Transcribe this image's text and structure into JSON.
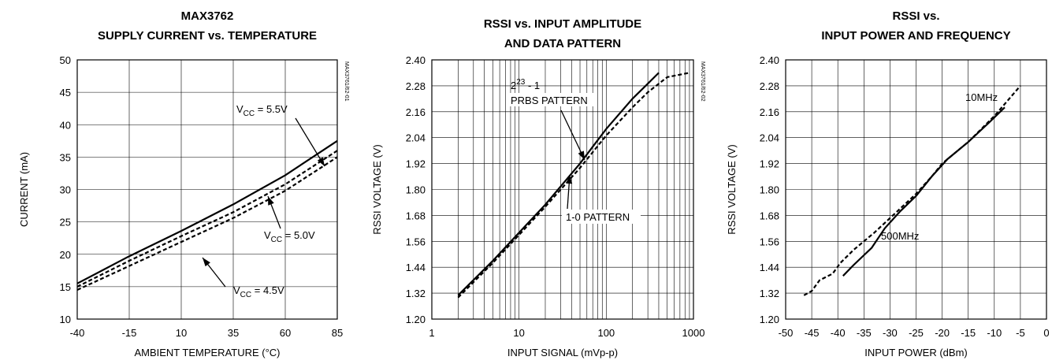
{
  "chart_data": [
    {
      "type": "line",
      "title_lines": [
        "MAX3762",
        "SUPPLY CURRENT vs. TEMPERATURE"
      ],
      "xlabel": "AMBIENT TEMPERATURE (°C)",
      "ylabel": "CURRENT (mA)",
      "xlim": [
        -40,
        85
      ],
      "ylim": [
        10,
        50
      ],
      "xticks": [
        "-40",
        "-15",
        "10",
        "35",
        "60",
        "85"
      ],
      "yticks": [
        "10",
        "15",
        "20",
        "25",
        "30",
        "35",
        "40",
        "45",
        "50"
      ],
      "grid": true,
      "code": "MAX3761/62-01",
      "series": [
        {
          "name": "VCC = 5.5V",
          "style": "solid",
          "x": [
            -40,
            -15,
            10,
            35,
            60,
            85
          ],
          "y": [
            15.5,
            19.7,
            23.6,
            27.7,
            32.2,
            37.5
          ]
        },
        {
          "name": "VCC = 5.0V",
          "style": "dashed",
          "x": [
            -40,
            -15,
            10,
            35,
            60,
            85
          ],
          "y": [
            15.0,
            19.0,
            22.8,
            26.5,
            30.8,
            36.0
          ]
        },
        {
          "name": "VCC = 4.5V",
          "style": "dashed",
          "x": [
            -40,
            -15,
            10,
            35,
            60,
            85
          ],
          "y": [
            14.5,
            18.2,
            21.9,
            25.6,
            29.8,
            35.0
          ]
        }
      ],
      "annotations": [
        {
          "main": "V",
          "sub": "CC",
          "rest": " = 5.5V"
        },
        {
          "main": "V",
          "sub": "CC",
          "rest": " = 5.0V"
        },
        {
          "main": "V",
          "sub": "CC",
          "rest": " = 4.5V"
        }
      ]
    },
    {
      "type": "line",
      "title_lines": [
        "RSSI vs. INPUT AMPLITUDE",
        "AND DATA PATTERN"
      ],
      "xlabel": "INPUT SIGNAL (mVp-p)",
      "ylabel": "RSSI VOLTAGE (V)",
      "xscale": "log",
      "xlim": [
        1,
        1000
      ],
      "ylim": [
        1.2,
        2.4
      ],
      "xticks": [
        "1",
        "10",
        "100",
        "1000"
      ],
      "yticks": [
        "1.20",
        "1.32",
        "1.44",
        "1.56",
        "1.68",
        "1.80",
        "1.92",
        "2.04",
        "2.16",
        "2.28",
        "2.40"
      ],
      "grid": true,
      "code": "MAX3761/62-02",
      "series": [
        {
          "name": "2^23 - 1 PRBS PATTERN",
          "style": "solid",
          "x": [
            2,
            5,
            10,
            20,
            50,
            100,
            200,
            300,
            400
          ],
          "y": [
            1.31,
            1.47,
            1.6,
            1.73,
            1.92,
            2.08,
            2.22,
            2.29,
            2.34
          ]
        },
        {
          "name": "1-0 PATTERN",
          "style": "dashed",
          "x": [
            2,
            5,
            10,
            20,
            50,
            100,
            200,
            300,
            500,
            900
          ],
          "y": [
            1.3,
            1.46,
            1.59,
            1.72,
            1.9,
            2.05,
            2.18,
            2.25,
            2.32,
            2.34
          ]
        }
      ],
      "annotations": [
        {
          "main": "2",
          "sup": "23",
          "rest": " - 1"
        },
        {
          "main": "PRBS PATTERN"
        },
        {
          "main": "1-0 PATTERN"
        }
      ]
    },
    {
      "type": "line",
      "title_lines": [
        "RSSI vs.",
        "INPUT POWER AND FREQUENCY"
      ],
      "xlabel": "INPUT POWER (dBm)",
      "ylabel": "RSSI VOLTAGE (V)",
      "xlim": [
        -50,
        0
      ],
      "ylim": [
        1.2,
        2.4
      ],
      "xticks": [
        "-50",
        "-45",
        "-40",
        "-35",
        "-30",
        "-25",
        "-20",
        "-15",
        "-10",
        "-5",
        "0"
      ],
      "yticks": [
        "1.20",
        "1.32",
        "1.44",
        "1.56",
        "1.68",
        "1.80",
        "1.92",
        "2.04",
        "2.16",
        "2.28",
        "2.40"
      ],
      "grid": true,
      "code": "MAX3761/62-03",
      "series": [
        {
          "name": "10MHz",
          "style": "dashed",
          "x": [
            -46.5,
            -45,
            -43.5,
            -41,
            -39.5,
            -37,
            -33,
            -29,
            -25,
            -22,
            -20,
            -15,
            -10,
            -5
          ],
          "y": [
            1.31,
            1.33,
            1.38,
            1.41,
            1.46,
            1.52,
            1.6,
            1.69,
            1.78,
            1.86,
            1.92,
            2.02,
            2.14,
            2.28
          ]
        },
        {
          "name": "500MHz",
          "style": "solid",
          "x": [
            -39,
            -37,
            -33.5,
            -31,
            -28,
            -25,
            -22,
            -19,
            -15,
            -11,
            -8
          ],
          "y": [
            1.4,
            1.45,
            1.53,
            1.62,
            1.7,
            1.77,
            1.86,
            1.94,
            2.02,
            2.11,
            2.18
          ]
        }
      ],
      "annotations": [
        {
          "main": "10MHz"
        },
        {
          "main": "500MHz"
        }
      ]
    }
  ]
}
